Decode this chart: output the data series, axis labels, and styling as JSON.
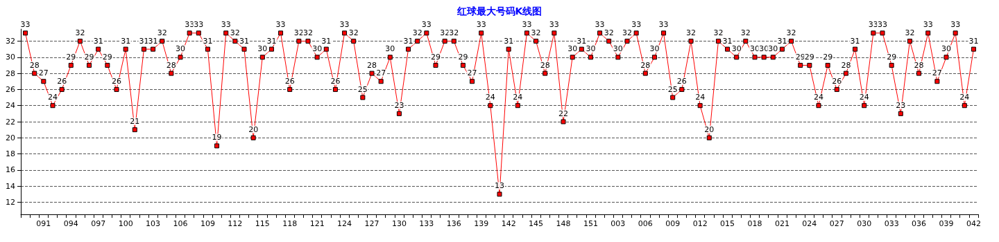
{
  "chart_data": {
    "type": "line",
    "title": "红球最大号码K线图",
    "categories": [
      null,
      null,
      "091",
      null,
      null,
      "094",
      null,
      null,
      "097",
      null,
      null,
      "100",
      null,
      null,
      "103",
      null,
      null,
      "106",
      null,
      null,
      "109",
      null,
      null,
      "112",
      null,
      null,
      "115",
      null,
      null,
      "118",
      null,
      null,
      "121",
      null,
      null,
      "124",
      null,
      null,
      "127",
      null,
      null,
      "130",
      null,
      null,
      "133",
      null,
      null,
      "136",
      null,
      null,
      "139",
      null,
      null,
      "142",
      null,
      null,
      "145",
      null,
      null,
      "148",
      null,
      null,
      "151",
      null,
      null,
      "003",
      null,
      null,
      "006",
      null,
      null,
      "009",
      null,
      null,
      "012",
      null,
      null,
      "015",
      null,
      null,
      "018",
      null,
      null,
      "021",
      null,
      null,
      "024",
      null,
      null,
      "027",
      null,
      null,
      "030",
      null,
      null,
      "033",
      null,
      null,
      "036",
      null,
      null,
      "039",
      null,
      null,
      "042"
    ],
    "series": [
      {
        "color": "#ff0000",
        "values": [
          33,
          28,
          27,
          24,
          26,
          29,
          32,
          29,
          31,
          29,
          26,
          31,
          21,
          31,
          31,
          32,
          28,
          30,
          33,
          33,
          31,
          19,
          33,
          32,
          31,
          20,
          30,
          31,
          33,
          26,
          32,
          32,
          30,
          31,
          26,
          33,
          32,
          25,
          28,
          27,
          30,
          23,
          31,
          32,
          33,
          29,
          32,
          32,
          29,
          27,
          33,
          24,
          13,
          31,
          24,
          33,
          32,
          28,
          33,
          22,
          30,
          31,
          30,
          33,
          32,
          30,
          32,
          33,
          28,
          30,
          33,
          25,
          26,
          32,
          24,
          20,
          32,
          31,
          30,
          32,
          30,
          30,
          30,
          31,
          32,
          29,
          29,
          24,
          29,
          26,
          28,
          31,
          24,
          33,
          33,
          29,
          23,
          32,
          28,
          33,
          27,
          30,
          33,
          24,
          31
        ]
      }
    ],
    "ylim": [
      10.5,
      33.5
    ],
    "yticks": [
      12,
      14,
      16,
      18,
      20,
      22,
      24,
      26,
      28,
      30,
      32
    ],
    "grid": "y",
    "marker": "square",
    "line_style": "solid",
    "data_labels": true
  }
}
